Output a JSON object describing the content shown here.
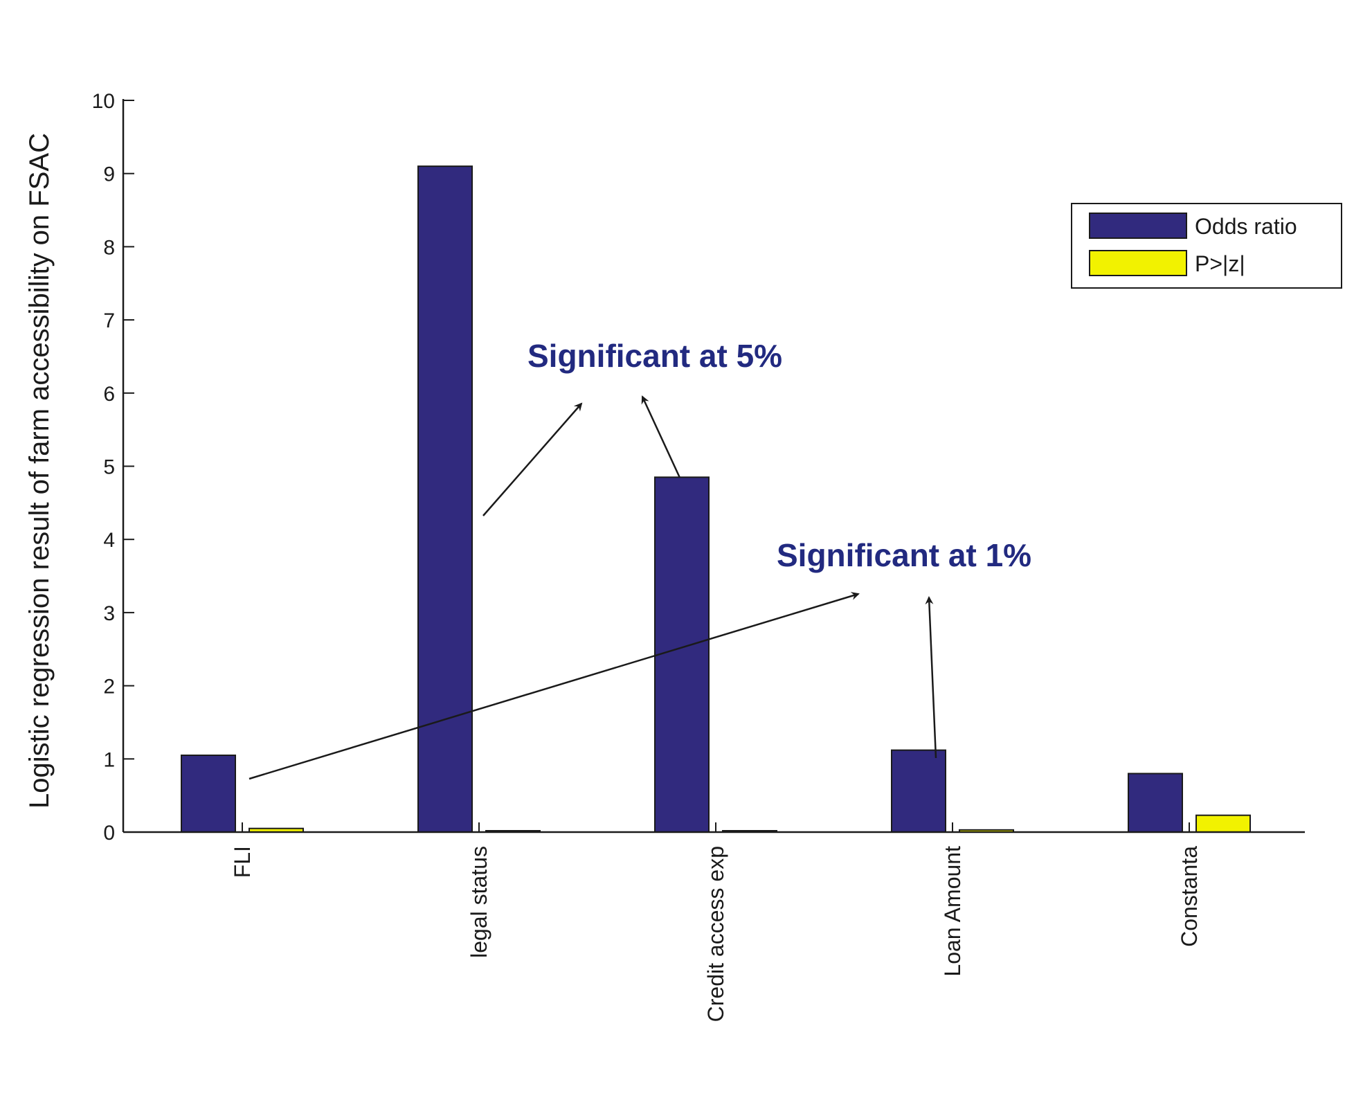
{
  "chart_data": {
    "type": "bar",
    "categories": [
      "FLI",
      "legal status",
      "Credit access exp",
      "Loan Amount",
      "Constanta"
    ],
    "series": [
      {
        "name": "Odds ratio",
        "color": "#312a7e",
        "values": [
          1.05,
          9.1,
          4.85,
          1.12,
          0.8
        ]
      },
      {
        "name": "P>|z|",
        "color": "#f2f200",
        "values": [
          0.05,
          0.0,
          0.0,
          0.03,
          0.23
        ]
      }
    ],
    "xlabel": "",
    "ylabel": "Logistic regression result of farm accessibility on FSAC",
    "ylim": [
      0,
      10
    ],
    "yticks": [
      0,
      1,
      2,
      3,
      4,
      5,
      6,
      7,
      8,
      9,
      10
    ],
    "grid": false,
    "legend_position": "top-right",
    "annotations": [
      {
        "text": "Significant at 5%",
        "color": "#222a80"
      },
      {
        "text": "Significant at 1%",
        "color": "#222a80"
      }
    ]
  }
}
